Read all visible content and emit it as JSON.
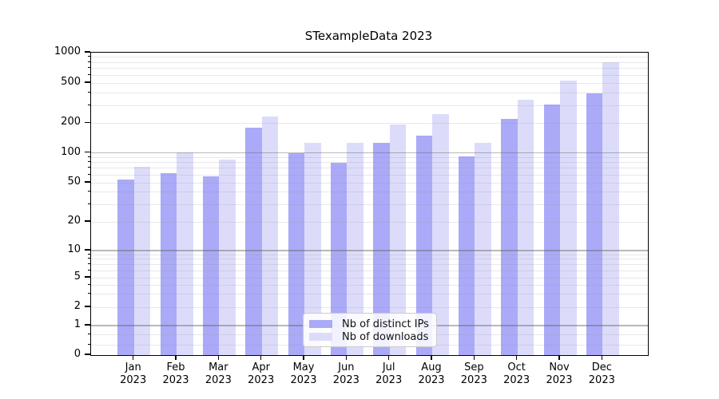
{
  "title": "STexampleData 2023",
  "colors": {
    "ips": "#aaaaf8",
    "downloads": "#dcdcfa",
    "grid_major": "rgba(100,100,100,0.45)",
    "grid_minor": "rgba(150,150,150,0.22)",
    "axis": "#000000",
    "legend_bg": "rgba(255,255,255,0.85)",
    "legend_border": "#cccccc"
  },
  "legend": {
    "items": [
      {
        "label": "Nb of distinct IPs",
        "series": "ips"
      },
      {
        "label": "Nb of downloads",
        "series": "downloads"
      }
    ]
  },
  "chart_data": {
    "type": "bar",
    "title": "STexampleData 2023",
    "categories": [
      "Jan 2023",
      "Feb 2023",
      "Mar 2023",
      "Apr 2023",
      "May 2023",
      "Jun 2023",
      "Jul 2023",
      "Aug 2023",
      "Sep 2023",
      "Oct 2023",
      "Nov 2023",
      "Dec 2023"
    ],
    "series": [
      {
        "name": "Nb of distinct IPs",
        "key": "ips",
        "values": [
          54,
          62,
          58,
          179,
          100,
          80,
          127,
          150,
          92,
          220,
          305,
          397
        ]
      },
      {
        "name": "Nb of downloads",
        "key": "downloads",
        "values": [
          72,
          102,
          85,
          232,
          126,
          127,
          193,
          247,
          126,
          340,
          528,
          800
        ]
      }
    ],
    "y_axis": {
      "scale": "symlog",
      "range": [
        0,
        1000
      ],
      "tick_values": [
        0,
        1,
        2,
        5,
        10,
        20,
        50,
        100,
        200,
        500,
        1000
      ],
      "major_grid_values": [
        1,
        10,
        100,
        1000
      ],
      "minor_grid_values": [
        0.35,
        0.7,
        2,
        3,
        4,
        5,
        6,
        7,
        8,
        9,
        20,
        30,
        40,
        50,
        60,
        70,
        80,
        90,
        200,
        300,
        400,
        500,
        600,
        700,
        800,
        900
      ]
    },
    "xlabel": "",
    "ylabel": "",
    "grid": true,
    "legend_position": "lower center"
  }
}
